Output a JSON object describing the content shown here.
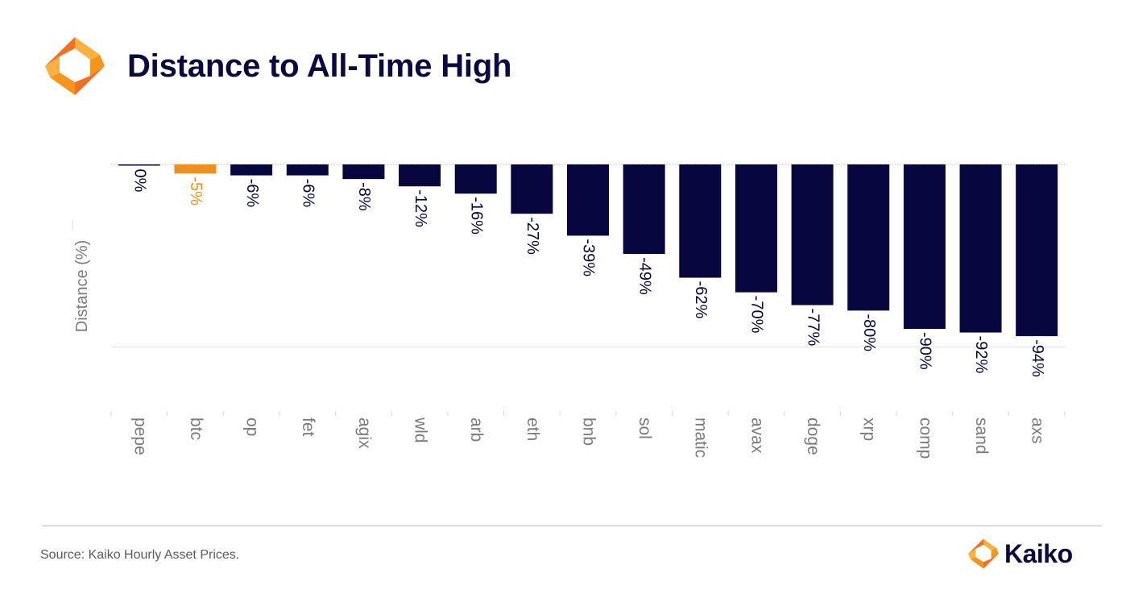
{
  "header": {
    "title": "Distance to All-Time High",
    "logo_icon": "kaiko-diamond-logo-icon"
  },
  "footer": {
    "source": "Source: Kaiko Hourly Asset Prices.",
    "brand_name": "Kaiko",
    "brand_icon": "kaiko-diamond-logo-icon"
  },
  "colors": {
    "bar_default": "#07063f",
    "bar_highlight": "#ef9120",
    "label_default": "#07063f",
    "label_highlight": "#ef9120",
    "title": "#0b0a40",
    "logo_orange": "#f7941d",
    "logo_light": "#fbb040",
    "logo_dark": "#f36f21"
  },
  "chart_data": {
    "type": "bar",
    "title": "Distance to All-Time High",
    "xlabel": "",
    "ylabel": "Distance (%)",
    "ylim": [
      -135,
      0
    ],
    "grid": "horizontal",
    "categories": [
      "pepe",
      "btc",
      "op",
      "fet",
      "agix",
      "wld",
      "arb",
      "eth",
      "bnb",
      "sol",
      "matic",
      "avax",
      "doge",
      "xrp",
      "comp",
      "sand",
      "axs"
    ],
    "series": [
      {
        "values": [
          0,
          -5,
          -6,
          -6,
          -8,
          -12,
          -16,
          -27,
          -39,
          -49,
          -62,
          -70,
          -77,
          -80,
          -90,
          -92,
          -94
        ],
        "labels": [
          "0%",
          "-5%",
          "-6%",
          "-6%",
          "-8%",
          "-12%",
          "-16%",
          "-27%",
          "-39%",
          "-49%",
          "-62%",
          "-70%",
          "-77%",
          "-80%",
          "-90%",
          "-92%",
          "-94%"
        ],
        "highlight": [
          "btc"
        ]
      }
    ]
  }
}
